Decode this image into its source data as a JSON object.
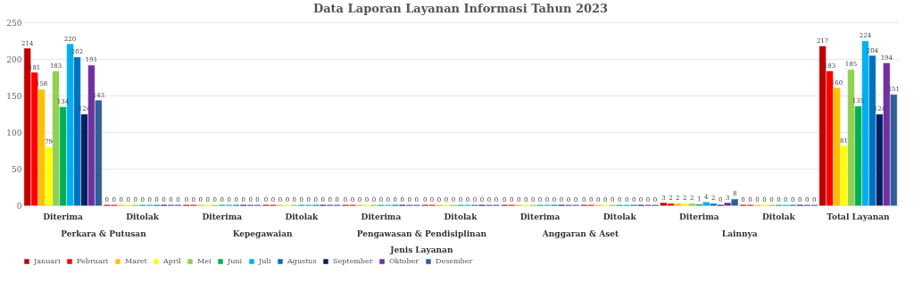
{
  "chart_data": {
    "type": "bar",
    "title": "Data Laporan Layanan Informasi Tahun 2023",
    "categories": [
      "Diterima",
      "Ditolak",
      "Diterima",
      "Ditolak",
      "Diterima",
      "Ditolak",
      "Diterima",
      "Ditolak",
      "Diterima",
      "Ditolak",
      "Total Layanan"
    ],
    "series": [
      {
        "name": "Januari",
        "color": "#c00000",
        "values": [
          214,
          0,
          0,
          0,
          0,
          0,
          0,
          0,
          3,
          0,
          217
        ]
      },
      {
        "name": "Februari",
        "color": "#ff0000",
        "values": [
          181,
          0,
          0,
          0,
          0,
          0,
          0,
          0,
          2,
          0,
          183
        ]
      },
      {
        "name": "Maret",
        "color": "#ffc000",
        "values": [
          158,
          0,
          0,
          0,
          0,
          0,
          0,
          0,
          2,
          0,
          160
        ]
      },
      {
        "name": "April",
        "color": "#ffff00",
        "values": [
          79,
          0,
          0,
          0,
          0,
          0,
          0,
          0,
          2,
          0,
          81
        ]
      },
      {
        "name": "Mei",
        "color": "#92d050",
        "values": [
          183,
          0,
          0,
          0,
          0,
          0,
          0,
          0,
          2,
          0,
          185
        ]
      },
      {
        "name": "Juni",
        "color": "#00b050",
        "values": [
          134,
          0,
          0,
          0,
          0,
          0,
          0,
          0,
          1,
          0,
          135
        ]
      },
      {
        "name": "Juli",
        "color": "#00b0f0",
        "values": [
          220,
          0,
          0,
          0,
          0,
          0,
          0,
          0,
          4,
          0,
          224
        ]
      },
      {
        "name": "Agustus",
        "color": "#0070c0",
        "values": [
          202,
          0,
          0,
          0,
          0,
          0,
          0,
          0,
          2,
          0,
          204
        ]
      },
      {
        "name": "September",
        "color": "#002060",
        "values": [
          124,
          0,
          0,
          0,
          0,
          0,
          0,
          0,
          0,
          0,
          124
        ]
      },
      {
        "name": "Oktober",
        "color": "#7030a0",
        "values": [
          191,
          0,
          0,
          0,
          0,
          0,
          0,
          0,
          3,
          0,
          194
        ]
      },
      {
        "name": "Desember",
        "color": "#2f5f98",
        "values": [
          143,
          0,
          0,
          0,
          0,
          0,
          0,
          0,
          8,
          0,
          151
        ]
      }
    ],
    "annotations": [
      "Perkara & Putusan",
      "Kepegawaian",
      "Pengawasan & Pendisiplinan",
      "Anggaran & Aset",
      "Lainnya",
      "Jenis Layanan"
    ],
    "ylim": [
      0,
      250
    ],
    "yticks": [
      0,
      50,
      100,
      150,
      200,
      250
    ],
    "grid": "y",
    "legend": "bottom",
    "data_labels": true
  }
}
